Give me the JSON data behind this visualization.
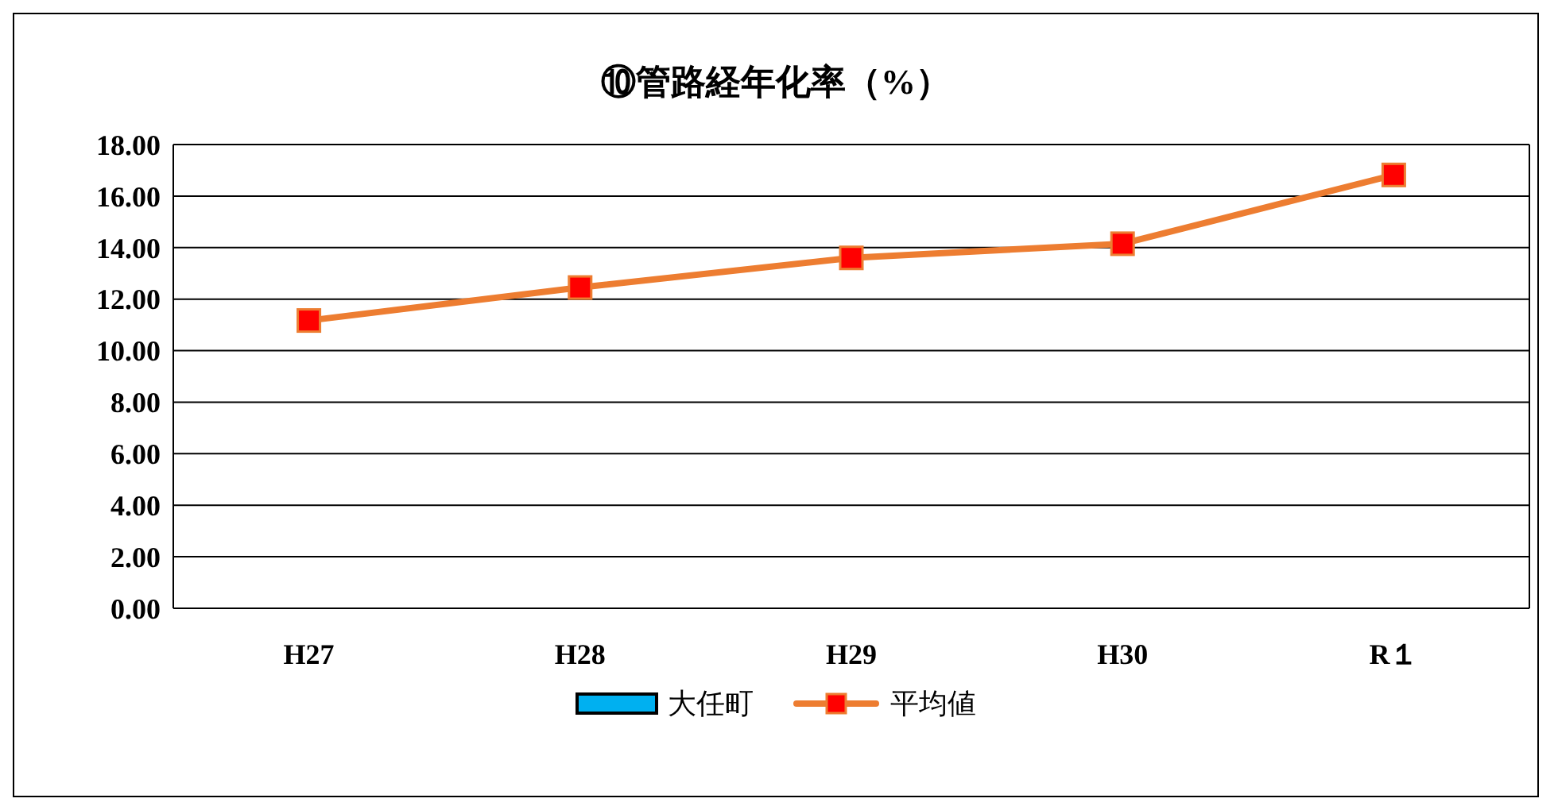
{
  "chart_data": {
    "type": "line",
    "title": "⑩管路経年化率（%）",
    "categories": [
      "H27",
      "H28",
      "H29",
      "H30",
      "R１"
    ],
    "series": [
      {
        "name": "大任町",
        "type": "bar",
        "color": "#00b0f0",
        "values": [
          null,
          null,
          null,
          null,
          null
        ]
      },
      {
        "name": "平均値",
        "color": "#ed7d31",
        "values": [
          11.17,
          12.45,
          13.6,
          14.15,
          16.82
        ]
      }
    ],
    "ylim": [
      0,
      18
    ],
    "yticks": [
      {
        "value": 0,
        "label": "0.00"
      },
      {
        "value": 2,
        "label": "2.00"
      },
      {
        "value": 4,
        "label": "4.00"
      },
      {
        "value": 6,
        "label": "6.00"
      },
      {
        "value": 8,
        "label": "8.00"
      },
      {
        "value": 10,
        "label": "10.00"
      },
      {
        "value": 12,
        "label": "12.00"
      },
      {
        "value": 14,
        "label": "14.00"
      },
      {
        "value": 16,
        "label": "16.00"
      },
      {
        "value": 18,
        "label": "18.00"
      }
    ],
    "grid": "y",
    "legend": "bottom",
    "marker": "square"
  }
}
